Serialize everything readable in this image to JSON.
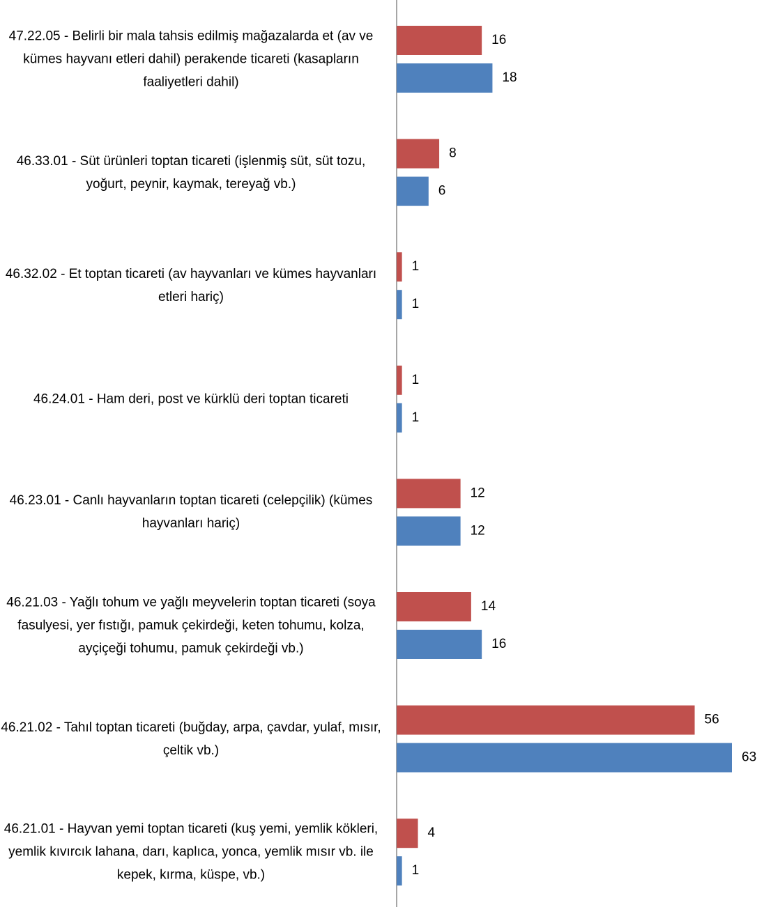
{
  "chart_data": {
    "type": "bar",
    "orientation": "horizontal",
    "categories": [
      "47.22.05 - Belirli bir mala tahsis edilmiş mağazalarda et (av ve kümes hayvanı etleri dahil) perakende ticareti (kasapların faaliyetleri dahil)",
      "46.33.01 - Süt ürünleri toptan ticareti (işlenmiş süt, süt tozu, yoğurt, peynir, kaymak, tereyağ vb.)",
      "46.32.02 - Et toptan ticareti (av hayvanları ve kümes hayvanları etleri hariç)",
      "46.24.01 - Ham deri, post ve kürklü deri toptan ticareti",
      "46.23.01 - Canlı hayvanların toptan ticareti (celepçilik) (kümes hayvanları hariç)",
      "46.21.03 - Yağlı tohum ve yağlı meyvelerin toptan ticareti (soya fasulyesi, yer fıstığı, pamuk çekirdeği, keten tohumu, kolza, ayçiçeği tohumu, pamuk çekirdeği vb.)",
      "46.21.02 - Tahıl toptan ticareti (buğday, arpa, çavdar, yulaf, mısır, çeltik vb.)",
      "46.21.01 - Hayvan yemi toptan ticareti (kuş yemi, yemlik kökleri, yemlik kıvırcık lahana, darı, kaplıca, yonca, yemlik mısır vb. ile kepek, kırma, küspe, vb.)"
    ],
    "series": [
      {
        "color": "#c0504d",
        "values": [
          16,
          8,
          1,
          1,
          12,
          14,
          56,
          4
        ]
      },
      {
        "color": "#4f81bd",
        "values": [
          18,
          6,
          1,
          1,
          12,
          16,
          63,
          1
        ]
      }
    ]
  }
}
